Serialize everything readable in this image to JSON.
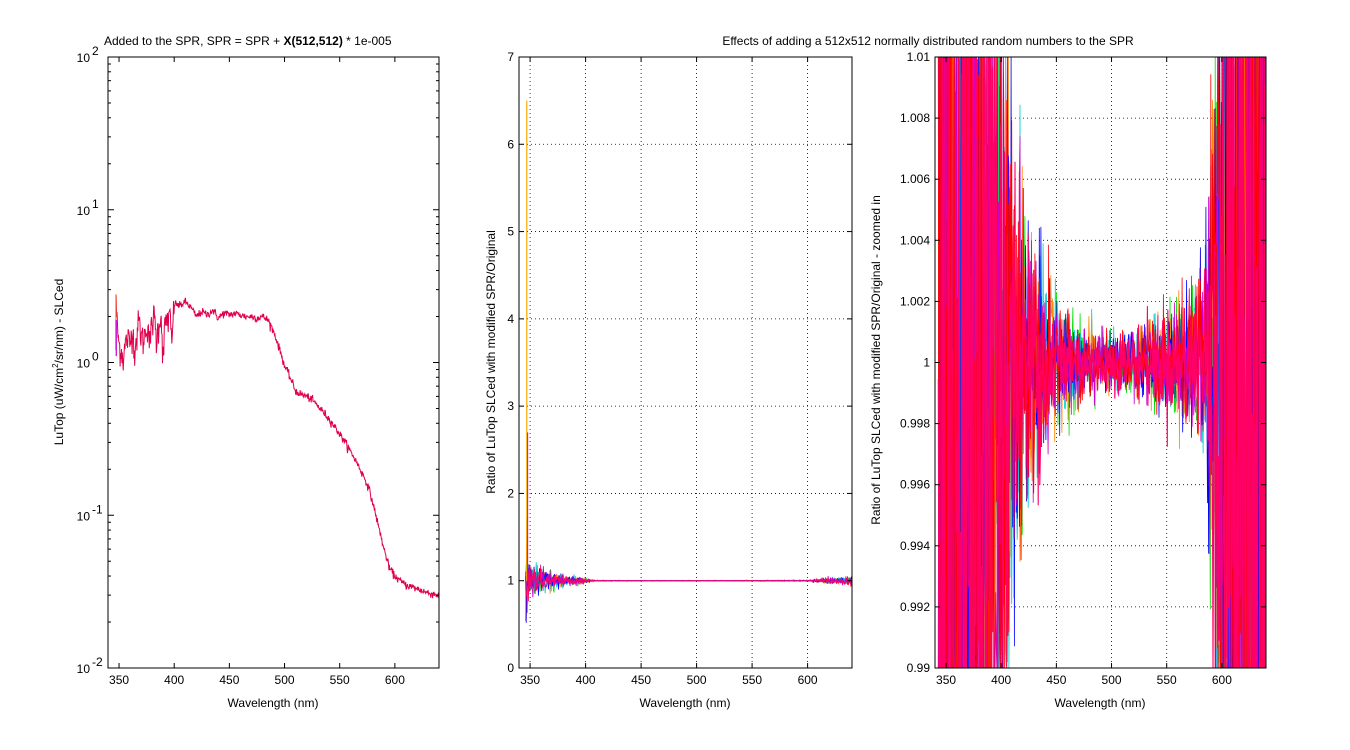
{
  "figure": {
    "title_left_pre": "Added to the SPR, SPR = SPR + ",
    "title_left_bold": "X(512,512)",
    "title_left_post": " * 1e-005",
    "title_right": "Effects of adding a 512x512 normally distributed random numbers to the SPR"
  },
  "series_colors": [
    "#ff0000",
    "#ff8800",
    "#00dd00",
    "#00cccc",
    "#0000ff",
    "#cc00cc",
    "#ff0066"
  ],
  "chart_data": [
    {
      "type": "line",
      "xlabel": "Wavelength (nm)",
      "ylabel_pre": "LuTop (uW/cm",
      "ylabel_sup": "2",
      "ylabel_post": "/sr/nm) - SLCed",
      "xlim": [
        340,
        640
      ],
      "ylim": [
        0.01,
        100
      ],
      "yscale": "log",
      "grid": false,
      "xticks": [
        "350",
        "400",
        "450",
        "500",
        "550",
        "600"
      ],
      "yticks": [
        {
          "base": "10",
          "exp": "-2"
        },
        {
          "base": "10",
          "exp": "-1"
        },
        {
          "base": "10",
          "exp": "0"
        },
        {
          "base": "10",
          "exp": "1"
        },
        {
          "base": "10",
          "exp": "2"
        }
      ],
      "x": [
        347,
        348,
        349,
        350,
        352,
        354,
        356,
        358,
        360,
        362,
        364,
        366,
        368,
        370,
        372,
        374,
        376,
        378,
        380,
        382,
        384,
        386,
        388,
        390,
        392,
        394,
        396,
        398,
        400,
        405,
        410,
        415,
        420,
        425,
        430,
        435,
        440,
        445,
        450,
        455,
        460,
        465,
        470,
        475,
        480,
        485,
        490,
        495,
        500,
        505,
        510,
        515,
        520,
        525,
        530,
        540,
        550,
        560,
        570,
        575,
        580,
        585,
        590,
        595,
        600,
        605,
        610,
        620,
        630,
        640
      ],
      "y": [
        2.8,
        1.9,
        1.55,
        1.3,
        1.2,
        1.05,
        1.35,
        1.45,
        1.3,
        1.7,
        1.2,
        1.45,
        1.9,
        1.5,
        1.4,
        1.6,
        1.8,
        1.3,
        1.85,
        2.0,
        1.35,
        1.8,
        2.05,
        1.0,
        1.9,
        1.9,
        2.0,
        1.3,
        2.45,
        2.35,
        2.5,
        2.3,
        2.0,
        2.15,
        2.05,
        2.2,
        1.95,
        2.1,
        2.05,
        2.1,
        2.05,
        2.0,
        2.0,
        1.95,
        2.0,
        1.9,
        1.6,
        1.25,
        0.95,
        0.8,
        0.65,
        0.62,
        0.6,
        0.57,
        0.52,
        0.43,
        0.34,
        0.26,
        0.19,
        0.16,
        0.12,
        0.085,
        0.06,
        0.045,
        0.04,
        0.037,
        0.035,
        0.033,
        0.031,
        0.03
      ]
    },
    {
      "type": "line",
      "xlabel": "Wavelength (nm)",
      "ylabel": "Ratio of LuTop SLCed with modified SPR/Original",
      "xlim": [
        340,
        640
      ],
      "ylim": [
        0,
        7
      ],
      "grid": true,
      "xticks": [
        "350",
        "400",
        "450",
        "500",
        "550",
        "600"
      ],
      "yticks": [
        "0",
        "1",
        "2",
        "3",
        "4",
        "5",
        "6",
        "7"
      ],
      "spike_x": 347,
      "spike_max": 6.5,
      "envelope_x": [
        346,
        348,
        350,
        360,
        370,
        380,
        390,
        400,
        410,
        500,
        600,
        620,
        640
      ],
      "envelope_halfwidth": [
        0.35,
        0.2,
        0.12,
        0.08,
        0.06,
        0.04,
        0.03,
        0.015,
        0.003,
        0.002,
        0.004,
        0.02,
        0.03
      ]
    },
    {
      "type": "line",
      "xlabel": "Wavelength (nm)",
      "ylabel": "Ratio of LuTop SLCed with modified SPR/Original - zoomed in",
      "xlim": [
        340,
        640
      ],
      "ylim": [
        0.99,
        1.01
      ],
      "grid": true,
      "xticks": [
        "350",
        "400",
        "450",
        "500",
        "550",
        "600"
      ],
      "yticks": [
        "0.99",
        "0.992",
        "0.994",
        "0.996",
        "0.998",
        "1",
        "1.002",
        "1.004",
        "1.006",
        "1.008",
        "1.01"
      ],
      "envelope_x": [
        345,
        370,
        385,
        395,
        400,
        410,
        420,
        440,
        460,
        480,
        500,
        520,
        540,
        560,
        575,
        585,
        590,
        595,
        600,
        610,
        620,
        640
      ],
      "envelope_halfwidth": [
        0.05,
        0.03,
        0.02,
        0.012,
        0.008,
        0.0045,
        0.003,
        0.0015,
        0.0009,
        0.0006,
        0.0005,
        0.0006,
        0.0008,
        0.001,
        0.0014,
        0.002,
        0.004,
        0.008,
        0.015,
        0.03,
        0.05,
        0.06
      ]
    }
  ]
}
